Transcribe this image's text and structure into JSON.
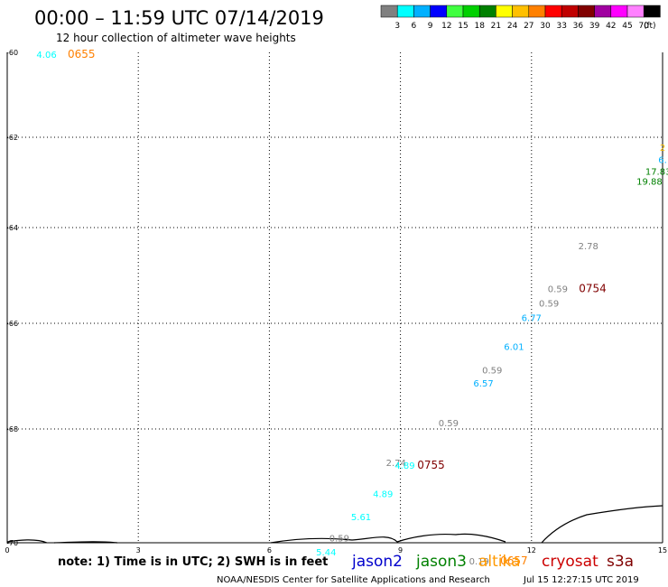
{
  "header": {
    "title": "00:00 – 11:59 UTC 07/14/2019",
    "subtitle": "12 hour collection of altimeter wave heights"
  },
  "scale": {
    "colors": [
      "#808080",
      "#00ffff",
      "#00b0ff",
      "#0000ff",
      "#40ff40",
      "#00d000",
      "#008000",
      "#ffff00",
      "#ffc000",
      "#ff8000",
      "#ff0000",
      "#c00000",
      "#800000",
      "#a000a0",
      "#ff00ff",
      "#ff80ff",
      "#000000"
    ],
    "labels": [
      "3",
      "6",
      "9",
      "12",
      "15",
      "18",
      "21",
      "24",
      "27",
      "30",
      "33",
      "36",
      "39",
      "42",
      "45",
      "70"
    ],
    "unit": "(ft)"
  },
  "chart_data": {
    "type": "scatter",
    "x_ticks": [
      "0",
      "3",
      "6",
      "9",
      "12",
      "15"
    ],
    "y_ticks": [
      "-60",
      "-62",
      "-64",
      "-66",
      "-68",
      "-70"
    ],
    "xlim": [
      0,
      15
    ],
    "ylim": [
      -70,
      -60
    ],
    "grid": true,
    "points": [
      {
        "label": "4.06",
        "x": 0.9,
        "y": -60.13,
        "color": "#00ffff"
      },
      {
        "label": "2.78",
        "x": 13.3,
        "y": -64.45,
        "color": "#808080"
      },
      {
        "label": "0.59",
        "x": 12.6,
        "y": -65.35,
        "color": "#808080"
      },
      {
        "label": "0.59",
        "x": 12.4,
        "y": -65.65,
        "color": "#808080"
      },
      {
        "label": "6.77",
        "x": 12.0,
        "y": -65.95,
        "color": "#00b0ff"
      },
      {
        "label": "6.01",
        "x": 11.6,
        "y": -66.5,
        "color": "#00b0ff"
      },
      {
        "label": "0.59",
        "x": 11.1,
        "y": -66.95,
        "color": "#808080"
      },
      {
        "label": "6.57",
        "x": 10.9,
        "y": -67.2,
        "color": "#00b0ff"
      },
      {
        "label": "0.59",
        "x": 10.1,
        "y": -67.95,
        "color": "#808080"
      },
      {
        "label": "2.74",
        "x": 8.9,
        "y": -68.65,
        "color": "#808080"
      },
      {
        "label": "4.89",
        "x": 9.1,
        "y": -68.7,
        "color": "#00ffff"
      },
      {
        "label": "4.89",
        "x": 8.6,
        "y": -69.2,
        "color": "#00ffff"
      },
      {
        "label": "5.61",
        "x": 8.1,
        "y": -69.6,
        "color": "#00ffff"
      },
      {
        "label": "0.59",
        "x": 7.6,
        "y": -69.98,
        "color": "#808080"
      },
      {
        "label": "5.44",
        "x": 7.3,
        "y": -70.22,
        "color": "#00ffff"
      },
      {
        "label": "0.19",
        "x": 10.8,
        "y": -70.38,
        "color": "#808080"
      },
      {
        "label": "17.83",
        "x": 14.9,
        "y": -62.83,
        "color": "#008000"
      },
      {
        "label": "19.88",
        "x": 14.7,
        "y": -63.05,
        "color": "#008000"
      },
      {
        "label": "6.",
        "x": 15.0,
        "y": -62.57,
        "color": "#00b0ff"
      },
      {
        "label": "2",
        "x": 15.0,
        "y": -62.3,
        "color": "#ffc000"
      }
    ],
    "time_labels": [
      {
        "label": "0655",
        "x": 1.7,
        "y": -60.13,
        "color": "#ff8000"
      },
      {
        "label": "0754",
        "x": 13.4,
        "y": -65.35,
        "color": "#800000"
      },
      {
        "label": "0755",
        "x": 9.7,
        "y": -68.7,
        "color": "#800000"
      },
      {
        "label": "0657",
        "x": 11.6,
        "y": -70.38,
        "color": "#ff8000"
      }
    ]
  },
  "footer": {
    "note": "note: 1) Time is in UTC; 2) SWH is in feet",
    "satellites": [
      {
        "name": "jason2",
        "color": "#0000cc"
      },
      {
        "name": "jason3",
        "color": "#008000"
      },
      {
        "name": "altika",
        "color": "#ff9900"
      },
      {
        "name": "cryosat",
        "color": "#cc0000"
      },
      {
        "name": "s3a",
        "color": "#800000"
      }
    ],
    "credit": "NOAA/NESDIS Center for Satellite Applications and Research",
    "timestamp": "Jul 15 12:27:15 UTC 2019"
  }
}
